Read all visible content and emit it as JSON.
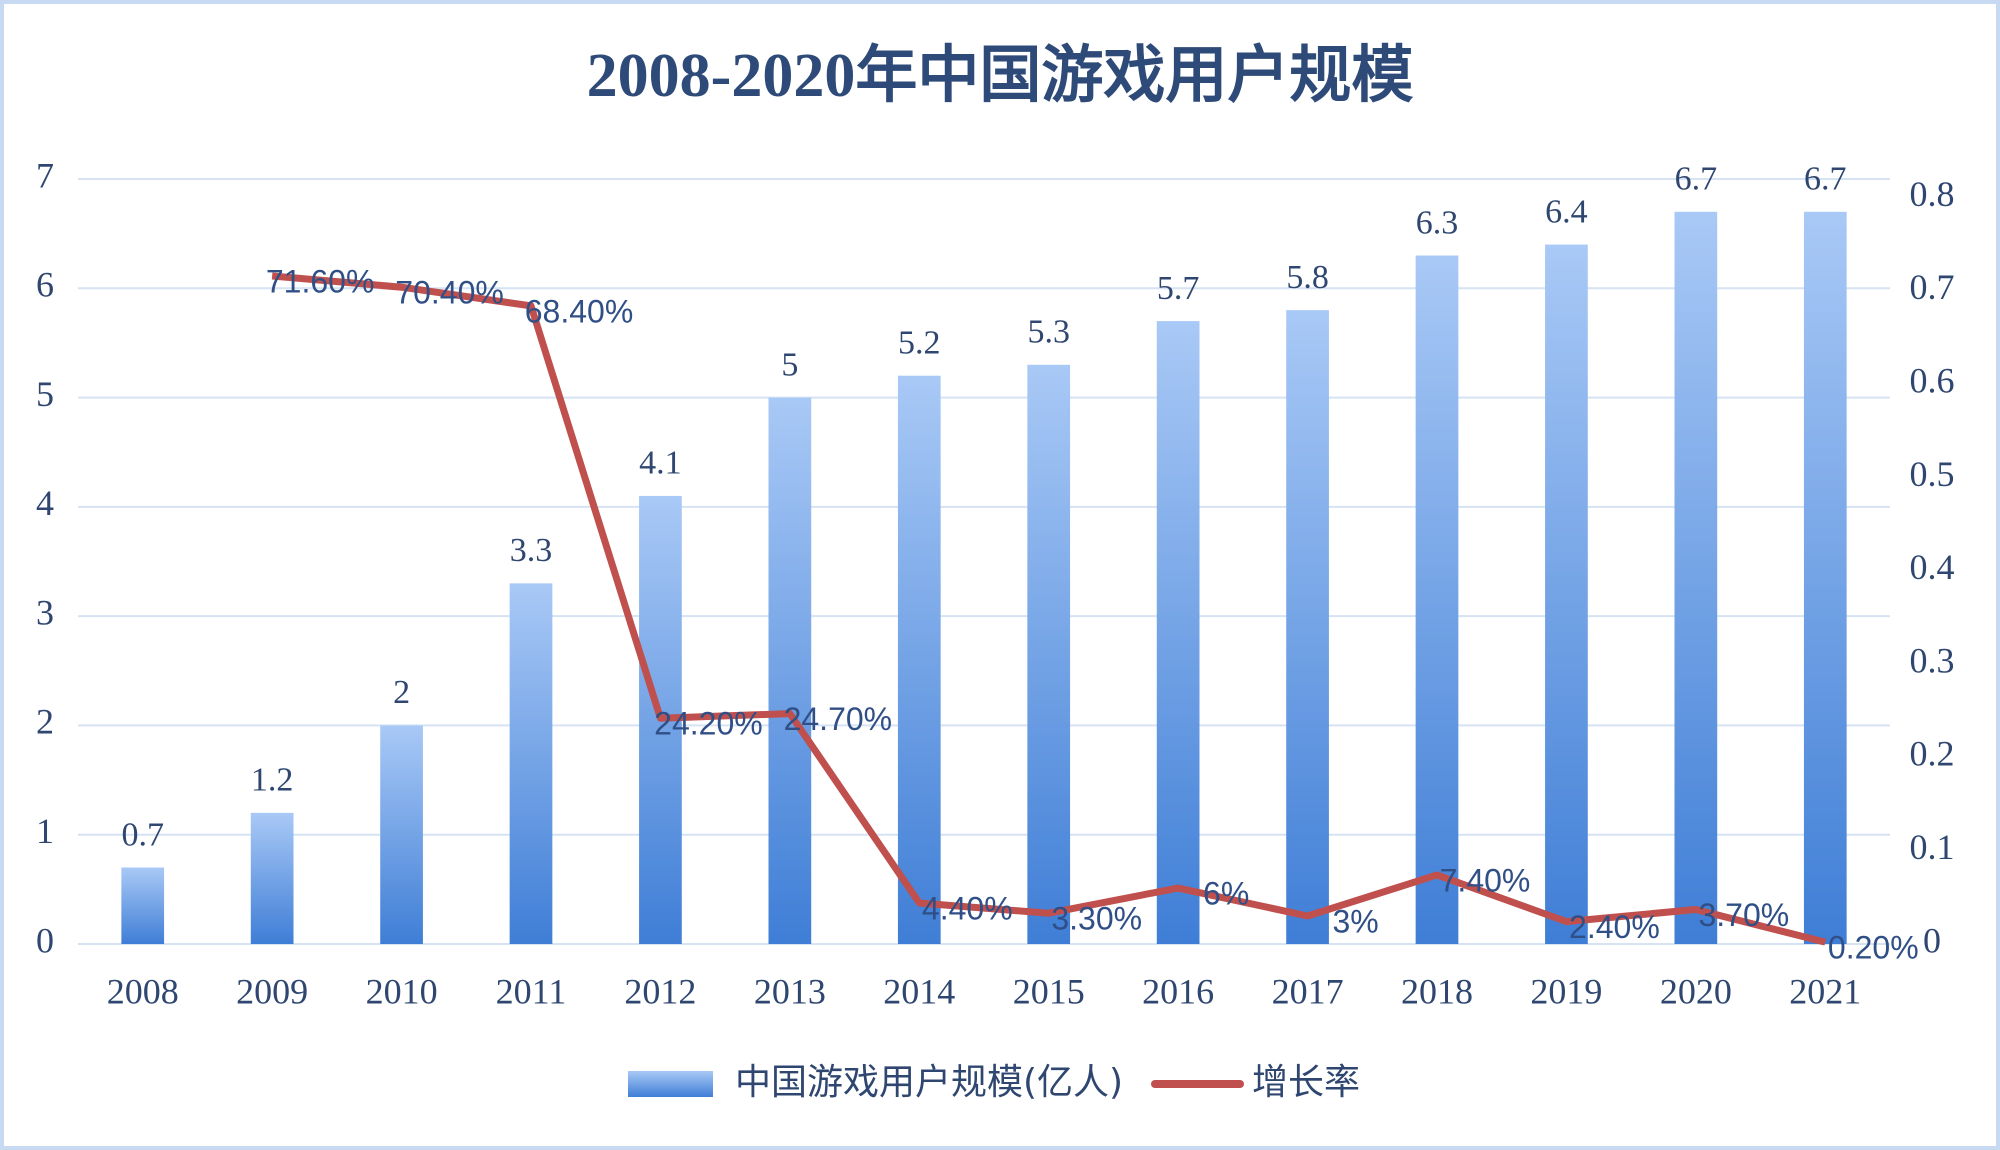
{
  "chart_data": {
    "type": "bar",
    "title": "2008-2020年中国游戏用户规模",
    "categories": [
      "2008",
      "2009",
      "2010",
      "2011",
      "2012",
      "2013",
      "2014",
      "2015",
      "2016",
      "2017",
      "2018",
      "2019",
      "2020",
      "2021"
    ],
    "series": [
      {
        "name": "中国游戏用户规模(亿人)",
        "type": "bar",
        "color": "#5b93e0",
        "values": [
          0.7,
          1.2,
          2,
          3.3,
          4.1,
          5,
          5.2,
          5.3,
          5.7,
          5.8,
          6.3,
          6.4,
          6.7,
          6.7
        ]
      },
      {
        "name": "增长率",
        "type": "line",
        "axis": "y2",
        "color": "#c0504d",
        "values": [
          null,
          0.716,
          0.704,
          0.684,
          0.242,
          0.247,
          0.044,
          0.033,
          0.06,
          0.03,
          0.074,
          0.024,
          0.037,
          0.002
        ],
        "value_labels": [
          null,
          "71.60%",
          "70.40%",
          "68.40%",
          "24.20%",
          "24.70%",
          "4.40%",
          "3.30%",
          "6%",
          "3%",
          "7.40%",
          "2.40%",
          "3.70%",
          "0.20%"
        ]
      }
    ],
    "ylim": [
      0,
      7
    ],
    "yticks": [
      0,
      1,
      2,
      3,
      4,
      5,
      6,
      7
    ],
    "y2lim": [
      0,
      0.82
    ],
    "y2ticks": [
      0,
      0.1,
      0.2,
      0.3,
      0.4,
      0.5,
      0.6,
      0.7,
      0.8
    ],
    "grid": true,
    "legend": "bottom"
  }
}
